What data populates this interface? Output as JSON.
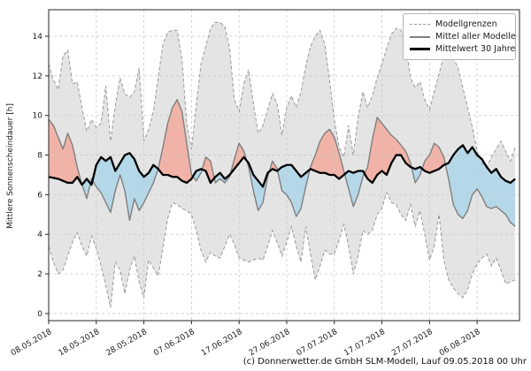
{
  "caption": "(c) Donnerwetter.de GmbH SLM-Modell, Lauf 09.05.2018 00 Uhr",
  "legend": {
    "items": [
      {
        "label": "Modellgrenzen",
        "style": "dashed-gray"
      },
      {
        "label": "Mittel aller Modelle",
        "style": "solid-gray"
      },
      {
        "label": "Mittelwert 30 Jahre",
        "style": "solid-black"
      }
    ]
  },
  "chart_data": {
    "type": "area",
    "title": "",
    "xlabel": "",
    "ylabel": "Mittlere Sonnenscheindauer [h]",
    "x_unit": "days since 08.05.2018",
    "xlim": [
      0,
      98.9
    ],
    "ylim": [
      -0.36,
      15.34
    ],
    "grid": true,
    "legend_position": "upper right",
    "x_tick_days": [
      0,
      10,
      20,
      30,
      40,
      50,
      60,
      70,
      80,
      90
    ],
    "x_tick_labels": [
      "08.05.2018",
      "18.05.2018",
      "28.05.2018",
      "07.06.2018",
      "17.06.2018",
      "27.06.2018",
      "07.07.2018",
      "17.07.2018",
      "27.07.2018",
      "06.08.2018"
    ],
    "y_ticks": [
      0,
      2,
      4,
      6,
      8,
      10,
      12,
      14
    ],
    "colors": {
      "band_fill": "#e4e4e4",
      "band_edge": "#999999",
      "above_fill": "#f1b3a7",
      "below_fill": "#b5d8e9",
      "model_mean_line": "#7f7f7f",
      "mean30_line": "#000000",
      "grid": "#c9c9c9",
      "spine": "#262626"
    },
    "series": [
      {
        "name": "Modellgrenzen oben",
        "role": "upper_bound",
        "values": [
          12.6,
          11.8,
          11.3,
          13.0,
          13.3,
          11.6,
          11.7,
          10.4,
          9.2,
          9.8,
          9.4,
          9.6,
          11.5,
          8.7,
          10.5,
          11.9,
          11.1,
          10.9,
          11.2,
          12.4,
          8.7,
          9.3,
          10.2,
          11.9,
          13.6,
          14.2,
          14.3,
          14.3,
          12.8,
          9.6,
          8.3,
          10.5,
          12.6,
          13.5,
          14.4,
          14.7,
          14.7,
          14.5,
          13.4,
          10.8,
          10.2,
          11.6,
          12.3,
          10.6,
          9.1,
          9.5,
          10.3,
          11.1,
          10.6,
          9.0,
          10.4,
          11.0,
          10.4,
          11.2,
          12.5,
          13.5,
          14.0,
          14.3,
          13.6,
          11.8,
          9.8,
          8.4,
          7.9,
          9.5,
          8.0,
          9.9,
          11.2,
          10.4,
          11.0,
          11.9,
          12.6,
          13.4,
          14.1,
          14.4,
          14.3,
          13.6,
          11.9,
          11.4,
          11.7,
          10.8,
          10.3,
          11.2,
          12.1,
          13.0,
          13.2,
          12.9,
          12.4,
          11.4,
          10.4,
          9.4,
          8.2,
          7.6,
          7.4,
          7.9,
          8.3,
          8.7,
          8.2,
          7.7,
          8.4
        ]
      },
      {
        "name": "Modellgrenzen unten",
        "role": "lower_bound",
        "values": [
          3.4,
          2.6,
          2.0,
          2.2,
          2.9,
          3.6,
          4.1,
          3.4,
          2.9,
          3.9,
          3.3,
          2.4,
          1.4,
          0.3,
          2.6,
          2.2,
          1.0,
          2.2,
          2.9,
          1.6,
          0.8,
          2.7,
          2.3,
          1.9,
          3.3,
          4.8,
          5.6,
          5.5,
          5.3,
          5.2,
          5.0,
          4.2,
          3.2,
          2.6,
          3.1,
          2.9,
          2.8,
          3.4,
          4.0,
          3.5,
          2.8,
          2.7,
          2.6,
          2.7,
          2.8,
          2.7,
          3.4,
          4.2,
          3.6,
          2.9,
          3.6,
          4.4,
          3.4,
          2.6,
          4.4,
          3.0,
          1.7,
          2.4,
          3.2,
          3.0,
          3.0,
          3.7,
          4.5,
          3.4,
          2.0,
          2.9,
          4.2,
          4.0,
          4.2,
          5.0,
          5.3,
          6.1,
          5.6,
          5.5,
          5.0,
          4.7,
          5.5,
          4.4,
          5.2,
          4.0,
          2.7,
          3.4,
          5.0,
          2.7,
          1.7,
          1.3,
          1.0,
          0.8,
          1.2,
          2.0,
          2.5,
          2.8,
          3.0,
          2.4,
          2.8,
          2.2,
          1.5,
          1.6,
          1.7
        ]
      },
      {
        "name": "Mittel aller Modelle",
        "role": "model_mean",
        "values": [
          9.8,
          9.5,
          8.9,
          8.3,
          9.1,
          8.5,
          7.4,
          6.5,
          5.8,
          6.8,
          6.4,
          6.1,
          5.6,
          5.1,
          6.2,
          7.0,
          6.2,
          4.7,
          5.8,
          5.2,
          5.6,
          6.1,
          6.6,
          7.3,
          8.4,
          9.6,
          10.4,
          10.8,
          10.2,
          8.6,
          7.0,
          6.7,
          7.1,
          7.9,
          7.7,
          6.6,
          6.8,
          6.6,
          6.9,
          7.8,
          8.6,
          8.2,
          7.4,
          6.2,
          5.2,
          5.6,
          6.9,
          7.7,
          7.3,
          6.2,
          6.0,
          5.6,
          4.9,
          5.3,
          6.4,
          7.4,
          8.0,
          8.7,
          9.1,
          9.3,
          8.9,
          8.1,
          7.2,
          6.3,
          5.4,
          6.0,
          6.9,
          7.4,
          8.8,
          9.9,
          9.6,
          9.3,
          9.0,
          8.8,
          8.5,
          8.2,
          7.6,
          6.6,
          7.0,
          7.7,
          8.0,
          8.6,
          8.4,
          7.9,
          6.8,
          5.5,
          5.0,
          4.8,
          5.2,
          6.0,
          6.3,
          5.9,
          5.4,
          5.3,
          5.4,
          5.2,
          5.0,
          4.6,
          4.4
        ]
      },
      {
        "name": "Mittelwert 30 Jahre",
        "role": "mean_30y",
        "values": [
          6.9,
          6.85,
          6.8,
          6.7,
          6.6,
          6.6,
          6.9,
          6.5,
          6.8,
          6.5,
          7.5,
          7.9,
          7.7,
          7.9,
          7.2,
          7.6,
          8.0,
          8.1,
          7.8,
          7.2,
          6.9,
          7.1,
          7.5,
          7.3,
          7.0,
          7.0,
          6.9,
          6.9,
          6.7,
          6.6,
          6.8,
          7.2,
          7.3,
          7.2,
          6.6,
          6.9,
          7.1,
          6.8,
          7.0,
          7.3,
          7.6,
          7.9,
          7.6,
          7.0,
          6.7,
          6.4,
          7.1,
          7.3,
          7.2,
          7.4,
          7.5,
          7.5,
          7.2,
          6.9,
          7.1,
          7.3,
          7.2,
          7.1,
          7.1,
          7.0,
          7.0,
          6.8,
          7.0,
          7.2,
          7.1,
          7.2,
          7.2,
          6.8,
          6.6,
          7.0,
          7.2,
          7.0,
          7.6,
          8.0,
          8.0,
          7.6,
          7.4,
          7.3,
          7.4,
          7.2,
          7.1,
          7.2,
          7.3,
          7.5,
          7.6,
          8.0,
          8.3,
          8.5,
          8.1,
          8.4,
          8.0,
          7.8,
          7.4,
          7.1,
          7.3,
          6.9,
          6.7,
          6.6,
          6.8
        ]
      }
    ]
  }
}
